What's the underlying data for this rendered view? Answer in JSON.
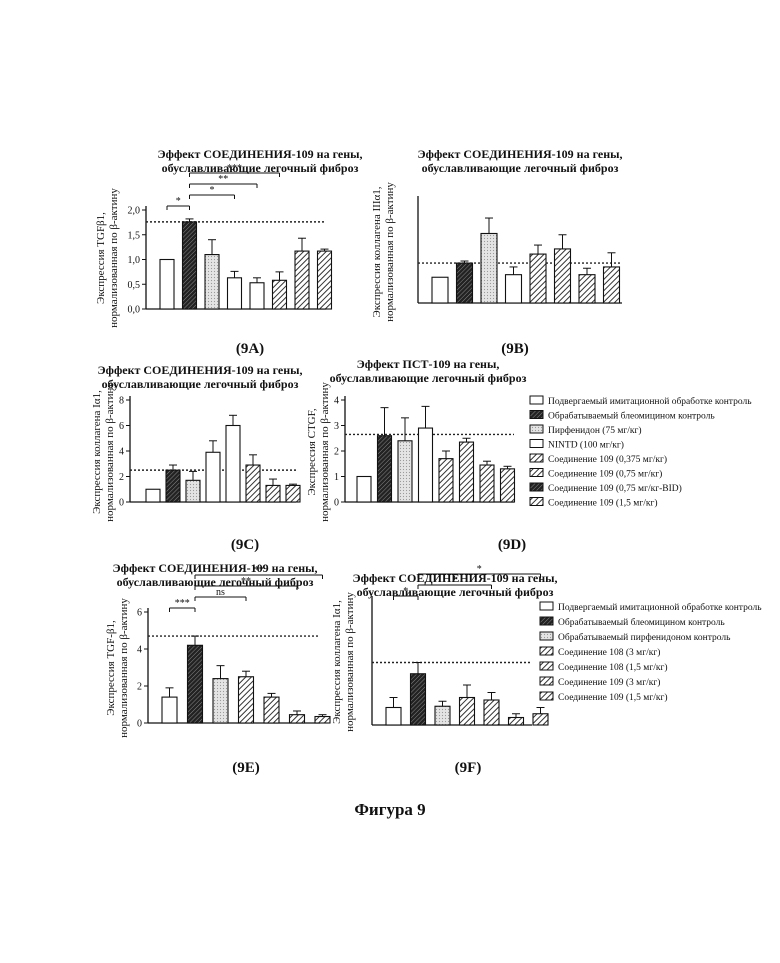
{
  "figure_caption": "Фигура 9",
  "chart_data": [
    {
      "panel": "9A",
      "type": "bar",
      "title": [
        "Эффект СОЕДИНЕНИЯ-109 на гены,",
        "обуславливающие легочный фиброз"
      ],
      "ylabel": [
        "Экспрессия TGFβ1,",
        "нормализованная по β-актину"
      ],
      "ylim": [
        0,
        2.0
      ],
      "ticks": [
        "0,0",
        "0,5",
        "1,0",
        "1,5",
        "2,0"
      ],
      "values": [
        1.0,
        1.76,
        1.1,
        0.63,
        0.53,
        0.58,
        1.17,
        1.17
      ],
      "errors": [
        0,
        0.06,
        0.3,
        0.13,
        0.1,
        0.17,
        0.26,
        0.04
      ],
      "patterns": [
        "white",
        "dark",
        "light",
        "white",
        "white",
        "hatch",
        "hatch",
        "hatch"
      ],
      "reference_line": 1.76,
      "significance": [
        {
          "label": "*",
          "from": 0,
          "to": 1
        },
        {
          "label": "*",
          "from": 1,
          "to": 3
        },
        {
          "label": "**",
          "from": 1,
          "to": 4
        },
        {
          "label": "***",
          "from": 1,
          "to": 5
        }
      ]
    },
    {
      "panel": "9B",
      "type": "bar",
      "title": [
        "Эффект СОЕДИНЕНИЯ-109 на гены,",
        "обуславливающие легочный фиброз"
      ],
      "ylabel": [
        "Экспрессия коллагена IIIα1,",
        "нормализованная по β-актину"
      ],
      "ylim": [
        0,
        4
      ],
      "ticks": [],
      "values": [
        1.0,
        1.55,
        2.7,
        1.1,
        1.9,
        2.1,
        1.1,
        1.4
      ],
      "errors": [
        0,
        0.08,
        0.6,
        0.3,
        0.35,
        0.55,
        0.25,
        0.55
      ],
      "patterns": [
        "white",
        "dark",
        "light",
        "white",
        "hatch",
        "hatch",
        "hatch",
        "hatch"
      ],
      "reference_line": 1.55,
      "significance": []
    },
    {
      "panel": "9C",
      "type": "bar",
      "title": [
        "Эффект СОЕДИНЕНИЯ-109 на гены,",
        "обуславливающие легочный фиброз"
      ],
      "ylabel": [
        "Экспрессия коллагена Iα1,",
        "нормализованная по β-актину"
      ],
      "ylim": [
        0,
        8
      ],
      "ticks": [
        "0",
        "2",
        "4",
        "6",
        "8"
      ],
      "values": [
        1.0,
        2.5,
        1.7,
        3.9,
        6.0,
        2.9,
        1.3,
        1.3
      ],
      "errors": [
        0,
        0.4,
        0.7,
        0.9,
        0.8,
        0.8,
        0.5,
        0.1
      ],
      "patterns": [
        "white",
        "dark",
        "light",
        "white",
        "white",
        "hatch",
        "hatch",
        "hatch"
      ],
      "reference_line": 2.5,
      "significance": []
    },
    {
      "panel": "9D",
      "type": "bar",
      "title": [
        "Эффект ПСТ-109 на гены,",
        "обуславливающие легочный фиброз"
      ],
      "ylabel": [
        "Экспрессия CTGF,",
        "нормализованная по β-актину"
      ],
      "ylim": [
        0,
        4
      ],
      "ticks": [
        "0",
        "1",
        "2",
        "3",
        "4"
      ],
      "values": [
        1.0,
        2.6,
        2.4,
        2.9,
        1.7,
        2.35,
        1.45,
        1.3
      ],
      "errors": [
        0,
        1.1,
        0.9,
        0.85,
        0.3,
        0.15,
        0.15,
        0.1
      ],
      "patterns": [
        "white",
        "dark",
        "light",
        "white",
        "hatch",
        "hatch",
        "hatch",
        "hatch"
      ],
      "reference_line": 2.65,
      "significance": [],
      "legend": [
        {
          "label": "Подвергаемый имитационной обработке контроль",
          "pattern": "white"
        },
        {
          "label": "Обрабатываемый блеомицином контроль",
          "pattern": "dark"
        },
        {
          "label": "Пирфенидон (75 мг/кг)",
          "pattern": "light"
        },
        {
          "label": "NINTD (100 мг/кг)",
          "pattern": "white"
        },
        {
          "label": "Соединение 109 (0,375 мг/кг)",
          "pattern": "hatch"
        },
        {
          "label": "Соединение 109 (0,75 мг/кг)",
          "pattern": "hatch"
        },
        {
          "label": "Соединение 109 (0,75 мг/кг-BID)",
          "pattern": "dark"
        },
        {
          "label": "Соединение 109 (1,5 мг/кг)",
          "pattern": "hatch"
        }
      ]
    },
    {
      "panel": "9E",
      "type": "bar",
      "title": [
        "Эффект СОЕДИНЕНИЯ-109 на гены,",
        "обуславливающие легочный фиброз"
      ],
      "ylabel": [
        "Экспрессия TGF-β1,",
        "нормализованная по β-актину"
      ],
      "ylim": [
        0,
        6
      ],
      "ticks": [
        "0",
        "2",
        "4",
        "6"
      ],
      "values": [
        1.4,
        4.2,
        2.4,
        2.5,
        1.4,
        0.45,
        0.35
      ],
      "errors": [
        0.5,
        0.5,
        0.7,
        0.3,
        0.2,
        0.2,
        0.1
      ],
      "patterns": [
        "white",
        "dark",
        "light",
        "hatch",
        "hatch",
        "hatch",
        "hatch"
      ],
      "reference_line": 4.7,
      "significance": [
        {
          "label": "***",
          "from": 0,
          "to": 1
        },
        {
          "label": "ns",
          "from": 1,
          "to": 3
        },
        {
          "label": "**",
          "from": 1,
          "to": 5
        },
        {
          "label": "**",
          "from": 1,
          "to": 6
        }
      ]
    },
    {
      "panel": "9F",
      "type": "bar",
      "title": [
        "Эффект СОЕДИНЕНИЯ-109 на гены,",
        "обуславливающие легочный фиброз"
      ],
      "ylabel": [
        "Экспрессия коллагена Iα1,",
        "нормализованная по β-актину"
      ],
      "ylim": [
        0,
        10
      ],
      "ticks": [],
      "values": [
        1.4,
        4.1,
        1.5,
        2.2,
        2.0,
        0.6,
        0.9
      ],
      "errors": [
        0.8,
        0.9,
        0.4,
        1.0,
        0.6,
        0.3,
        0.5
      ],
      "patterns": [
        "white",
        "dark",
        "light",
        "hatch",
        "hatch",
        "hatch",
        "hatch"
      ],
      "reference_line": 5.0,
      "significance": [
        {
          "label": "*",
          "from": 0,
          "to": 1
        },
        {
          "label": "*",
          "from": 1,
          "to": 4
        },
        {
          "label": "*",
          "from": 1,
          "to": 6
        }
      ],
      "legend": [
        {
          "label": "Подвергаемый имитационной обработке контроль",
          "pattern": "white"
        },
        {
          "label": "Обрабатываемый блеомицином контроль",
          "pattern": "dark"
        },
        {
          "label": "Обрабатываемый пирфенидоном контроль",
          "pattern": "light"
        },
        {
          "label": "Соединение 108 (3 мг/кг)",
          "pattern": "hatch"
        },
        {
          "label": "Соединение 108 (1,5 мг/кг)",
          "pattern": "hatch"
        },
        {
          "label": "Соединение 109 (3 мг/кг)",
          "pattern": "hatch"
        },
        {
          "label": "Соединение 109 (1,5 мг/кг)",
          "pattern": "hatch"
        }
      ]
    }
  ]
}
